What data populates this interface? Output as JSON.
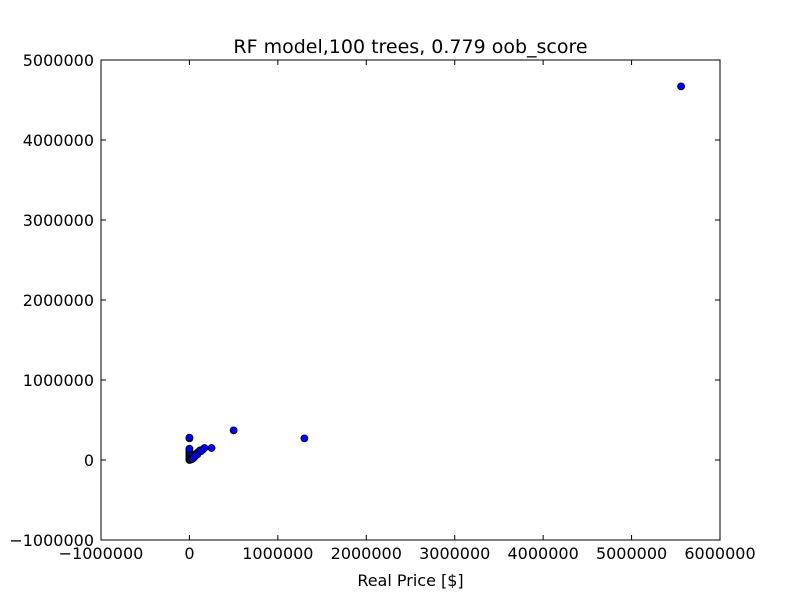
{
  "chart_data": {
    "type": "scatter",
    "title": "RF model,100 trees, 0.779 oob_score",
    "xlabel": "Real Price [$]",
    "ylabel": "",
    "xlim": [
      -1000000,
      6000000
    ],
    "ylim": [
      -1000000,
      5000000
    ],
    "x_ticks": [
      -1000000,
      0,
      1000000,
      2000000,
      3000000,
      4000000,
      5000000,
      6000000
    ],
    "x_tick_labels": [
      "−1000000",
      "0",
      "1000000",
      "2000000",
      "3000000",
      "4000000",
      "5000000",
      "6000000"
    ],
    "y_ticks": [
      -1000000,
      0,
      1000000,
      2000000,
      3000000,
      4000000,
      5000000
    ],
    "y_tick_labels": [
      "−1000000",
      "0",
      "1000000",
      "2000000",
      "3000000",
      "4000000",
      "5000000"
    ],
    "grid": false,
    "legend": "none",
    "marker_color": "#0000ff",
    "marker_edge_color": "#000000",
    "series": [
      {
        "x": [
          5560000,
          500000,
          1300000,
          250000,
          150000,
          120000,
          100000,
          80000,
          60000,
          40000,
          30000,
          20000,
          10000,
          5000,
          0,
          0,
          0,
          0,
          0,
          0,
          0,
          0,
          0,
          0,
          0,
          20000,
          40000,
          60000,
          90000,
          130000,
          170000,
          0,
          5000,
          15000,
          25000,
          35000,
          50000
        ],
        "y": [
          4670000,
          370000,
          270000,
          150000,
          130000,
          120000,
          100000,
          80000,
          60000,
          50000,
          40000,
          30000,
          20000,
          10000,
          0,
          20000,
          40000,
          60000,
          80000,
          100000,
          120000,
          140000,
          270000,
          280000,
          10000,
          10000,
          20000,
          40000,
          70000,
          110000,
          150000,
          5000,
          5000,
          5000,
          10000,
          15000,
          30000
        ]
      }
    ]
  }
}
